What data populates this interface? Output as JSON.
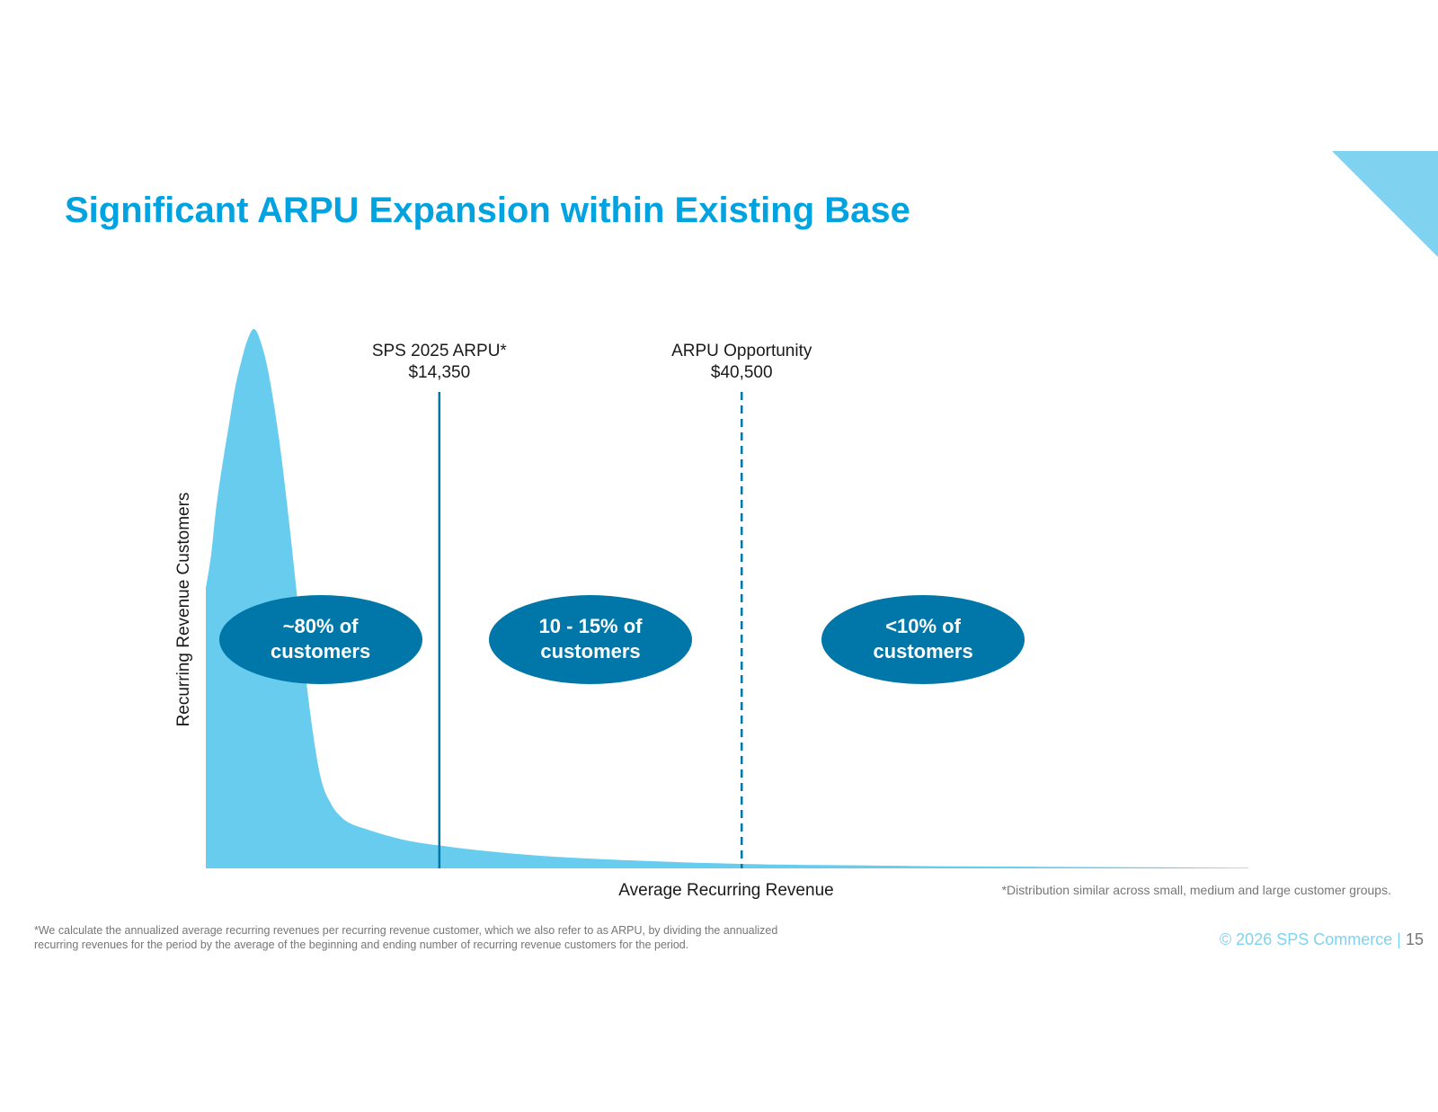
{
  "page": {
    "title": "Significant ARPU Expansion within Existing Base",
    "distribution_note": "*Distribution similar across small, medium and large customer groups.",
    "footnote": "*We calculate the annualized average recurring revenues per recurring revenue customer, which we also refer to as ARPU, by dividing the annualized recurring revenues for the period by the average of the beginning and ending number of recurring revenue customers for the period.",
    "copyright": "© 2026 SPS Commerce",
    "separator": "|",
    "page_number": "15"
  },
  "colors": {
    "title": "#00A3E0",
    "area_fill": "#68CCEF",
    "bubble_fill": "#0077A8",
    "marker_line": "#0077A8",
    "corner_accent": "#7FD3F0"
  },
  "chart_data": {
    "type": "area",
    "title": "",
    "xlabel": "Average Recurring Revenue",
    "ylabel": "Recurring Revenue Customers",
    "x_ticks": "none",
    "y_ticks": "none",
    "grid": false,
    "legend": "none",
    "series": [
      {
        "x": [
          0,
          0.5,
          1,
          1.6,
          2.2,
          2.8,
          3.4,
          4,
          4.6,
          5.2,
          6,
          7,
          8,
          9,
          10,
          11,
          12,
          13,
          14,
          15.5,
          17,
          19,
          21,
          23,
          25,
          28,
          31,
          34,
          38,
          42,
          46,
          50,
          55,
          60,
          65,
          70,
          75,
          80,
          85,
          90,
          95,
          100
        ],
        "y": [
          52,
          58,
          67,
          75,
          82,
          89,
          94,
          98,
          100,
          98,
          92,
          80,
          64,
          46,
          29,
          17,
          12,
          9.5,
          8.2,
          7.2,
          6.3,
          5.3,
          4.6,
          4.1,
          3.6,
          3.0,
          2.5,
          2.1,
          1.7,
          1.4,
          1.1,
          0.9,
          0.7,
          0.6,
          0.5,
          0.4,
          0.35,
          0.3,
          0.25,
          0.2,
          0.15,
          0.1
        ]
      }
    ],
    "markers": [
      {
        "label": "SPS 2025 ARPU*",
        "value_label": "$14,350",
        "x": 22.4,
        "style": "solid"
      },
      {
        "label": "ARPU Opportunity",
        "value_label": "$40,500",
        "x": 51.4,
        "style": "dashed"
      }
    ],
    "segments": [
      {
        "line1": "~80% of",
        "line2": "customers",
        "x": 11.0
      },
      {
        "line1": "10 - 15% of",
        "line2": "customers",
        "x": 36.9
      },
      {
        "line1": "<10% of",
        "line2": "customers",
        "x": 68.8
      }
    ]
  }
}
